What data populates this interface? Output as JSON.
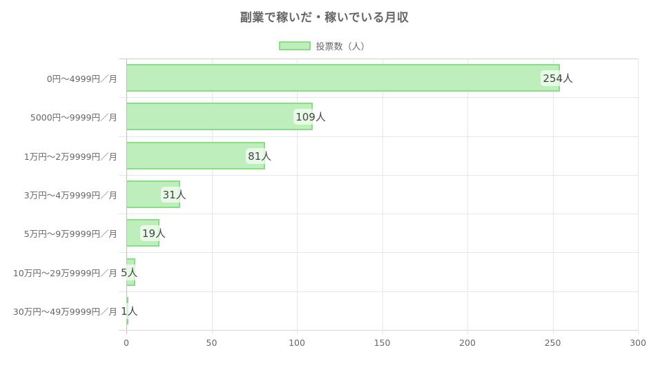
{
  "chart_data": {
    "type": "bar",
    "orientation": "horizontal",
    "title": "副業で稼いだ・稼いでいる月収",
    "legend": [
      "投票数（人）"
    ],
    "legend_position": "top",
    "categories": [
      "0円〜4999円／月",
      "5000円〜9999円／月",
      "1万円〜2万9999円／月",
      "3万円〜4万9999円／月",
      "5万円〜9万9999円／月",
      "10万円〜29万9999円／月",
      "30万円〜49万9999円／月"
    ],
    "series": [
      {
        "name": "投票数（人）",
        "values": [
          254,
          109,
          81,
          31,
          19,
          5,
          1
        ],
        "color": "#bdeebb",
        "border_color": "#86df84"
      }
    ],
    "value_labels": [
      "254人",
      "109人",
      "81人",
      "31人",
      "19人",
      "5人",
      "1人"
    ],
    "xlabel": "",
    "ylabel": "",
    "xlim": [
      0,
      300
    ],
    "x_ticks": [
      "0",
      "50",
      "100",
      "150",
      "200",
      "250",
      "300"
    ],
    "grid": true
  }
}
